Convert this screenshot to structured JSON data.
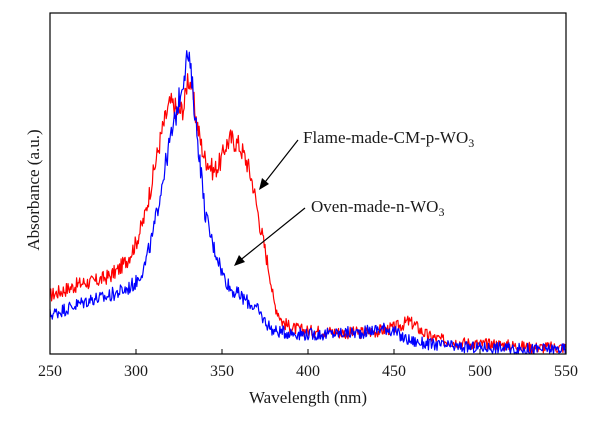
{
  "chart_data": {
    "type": "line",
    "xlabel": "Wavelength (nm)",
    "ylabel": "Absorbance (a.u.)",
    "xlim": [
      250,
      550
    ],
    "xticks": [
      "250",
      "300",
      "350",
      "400",
      "450",
      "500",
      "550"
    ],
    "y_ticks_shown": false,
    "grid": false,
    "series": [
      {
        "name": "Flame-made-CM-p-WO3",
        "color": "#ff0000",
        "x": [
          250,
          255,
          260,
          265,
          270,
          275,
          280,
          285,
          290,
          295,
          300,
          305,
          310,
          315,
          318,
          320,
          322,
          325,
          328,
          330,
          332,
          335,
          338,
          340,
          343,
          345,
          348,
          350,
          352,
          355,
          358,
          360,
          362,
          365,
          368,
          370,
          372,
          375,
          378,
          380,
          385,
          390,
          395,
          400,
          410,
          420,
          430,
          440,
          445,
          450,
          455,
          458,
          462,
          466,
          470,
          480,
          490,
          500,
          510,
          520,
          530,
          540,
          550
        ],
        "values": [
          0.18,
          0.19,
          0.2,
          0.21,
          0.22,
          0.22,
          0.23,
          0.24,
          0.26,
          0.29,
          0.34,
          0.42,
          0.55,
          0.68,
          0.74,
          0.77,
          0.76,
          0.74,
          0.76,
          0.85,
          0.83,
          0.72,
          0.64,
          0.6,
          0.58,
          0.56,
          0.58,
          0.6,
          0.64,
          0.66,
          0.65,
          0.64,
          0.62,
          0.58,
          0.52,
          0.46,
          0.4,
          0.32,
          0.24,
          0.16,
          0.1,
          0.08,
          0.075,
          0.07,
          0.07,
          0.065,
          0.065,
          0.07,
          0.075,
          0.08,
          0.09,
          0.1,
          0.09,
          0.07,
          0.055,
          0.04,
          0.035,
          0.03,
          0.03,
          0.025,
          0.02,
          0.02,
          0.02
        ]
      },
      {
        "name": "Oven-made-n-WO3",
        "color": "#0000ff",
        "x": [
          250,
          255,
          260,
          265,
          270,
          275,
          280,
          285,
          290,
          295,
          300,
          305,
          310,
          315,
          320,
          322,
          325,
          328,
          330,
          332,
          335,
          338,
          340,
          343,
          345,
          348,
          350,
          355,
          360,
          365,
          370,
          375,
          380,
          390,
          400,
          410,
          420,
          430,
          440,
          445,
          450,
          455,
          460,
          470,
          480,
          490,
          500,
          510,
          520,
          530,
          540,
          550
        ],
        "values": [
          0.12,
          0.13,
          0.14,
          0.15,
          0.16,
          0.17,
          0.17,
          0.18,
          0.19,
          0.2,
          0.22,
          0.27,
          0.37,
          0.52,
          0.66,
          0.7,
          0.78,
          0.86,
          0.92,
          0.86,
          0.7,
          0.55,
          0.44,
          0.37,
          0.33,
          0.29,
          0.25,
          0.2,
          0.18,
          0.16,
          0.14,
          0.1,
          0.07,
          0.065,
          0.06,
          0.06,
          0.065,
          0.065,
          0.075,
          0.08,
          0.07,
          0.05,
          0.04,
          0.03,
          0.025,
          0.02,
          0.02,
          0.02,
          0.015,
          0.015,
          0.015,
          0.015
        ]
      }
    ],
    "annotations": [
      {
        "main": "Flame-made-CM-p-WO",
        "sub": "3",
        "target_series": 0
      },
      {
        "main": "Oven-made-n-WO",
        "sub": "3",
        "target_series": 1
      }
    ]
  }
}
